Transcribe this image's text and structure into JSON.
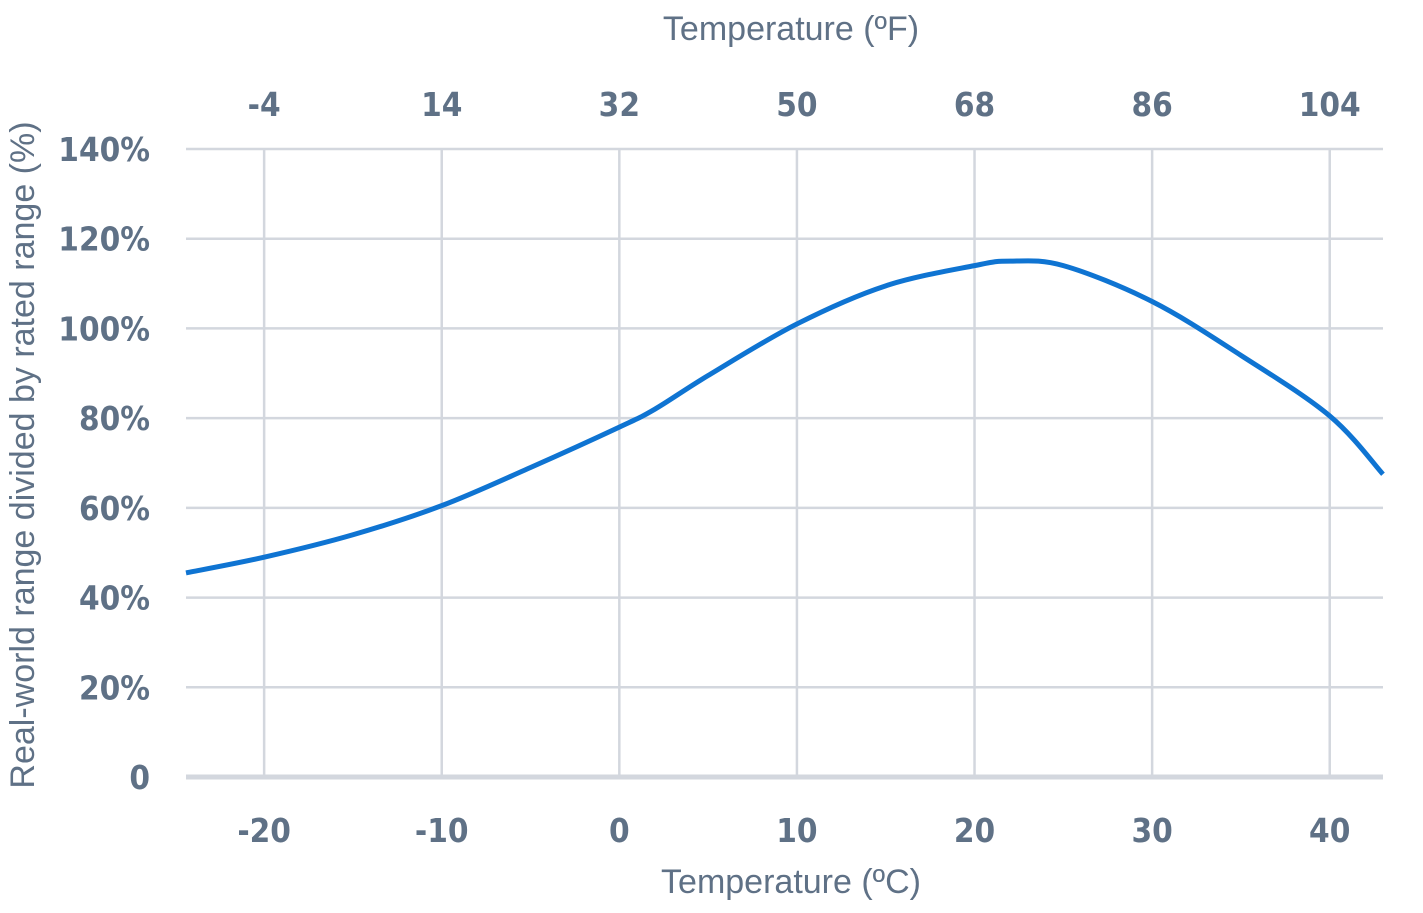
{
  "chart_data": {
    "type": "line",
    "title": "",
    "xlabel": "Temperature (ºC)",
    "x2label": "Temperature (ºF)",
    "ylabel": "Real-world range divided by rated range (%)",
    "xlim": [
      -24.4,
      43.0
    ],
    "ylim": [
      0,
      140
    ],
    "grid": true,
    "legend": "none",
    "x_ticks": [
      -20,
      -10,
      0,
      10,
      20,
      30,
      40
    ],
    "x_tick_labels": [
      "-20",
      "-10",
      "0",
      "10",
      "20",
      "30",
      "40"
    ],
    "x2_ticks_celsius": [
      -20,
      -10,
      0,
      10,
      20,
      30,
      40
    ],
    "x2_tick_labels": [
      "-4",
      "14",
      "32",
      "50",
      "68",
      "86",
      "104"
    ],
    "y_ticks": [
      0,
      20,
      40,
      60,
      80,
      100,
      120,
      140
    ],
    "y_tick_labels": [
      "0",
      "20%",
      "40%",
      "60%",
      "80%",
      "100%",
      "120%",
      "140%"
    ],
    "colors": {
      "series": "#0f74d2",
      "grid": "#d3d7de",
      "baseline": "#d3d7de",
      "text": "#5f7186"
    },
    "series": [
      {
        "x": [
          -24.4,
          -20,
          -15,
          -10,
          -5,
          0,
          2,
          5,
          10,
          15,
          20,
          22,
          25,
          30,
          35,
          40,
          43.0
        ],
        "values": [
          45.5,
          49,
          54,
          60.5,
          69,
          78,
          82,
          89.5,
          101,
          109.5,
          114,
          115,
          114,
          106,
          94,
          80.5,
          67.5
        ]
      }
    ]
  }
}
